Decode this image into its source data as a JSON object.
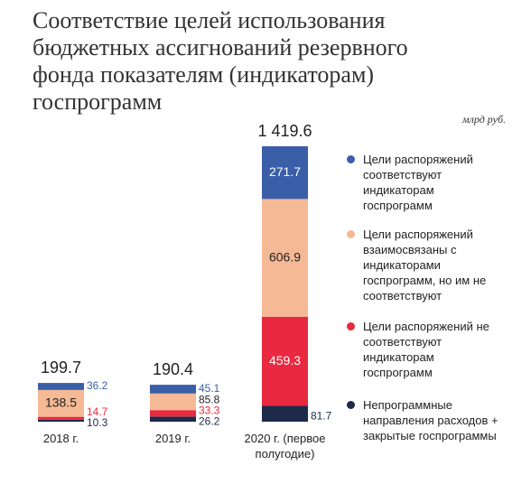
{
  "chart_data": {
    "type": "stacked_bar",
    "title": "Соответствие целей использования бюджетных ассигнований резервного фонда показателям (индикаторам) госпрограмм",
    "unit": "млрд руб.",
    "categories": [
      "2018 г.",
      "2019 г.",
      "2020 г. (первое полугодие)"
    ],
    "series": [
      {
        "name": "Цели распоряжений соответствуют индикаторам госпрограмм",
        "color": "#3a5fa8",
        "values": [
          36.2,
          45.1,
          271.7
        ]
      },
      {
        "name": "Цели распоряжений взаимосвязаны с индикаторами госпрограмм, но им не соответствуют",
        "color": "#f6b995",
        "values": [
          138.5,
          85.8,
          606.9
        ]
      },
      {
        "name": "Цели распоряжений не соответствуют индикаторам госпрограмм",
        "color": "#e8293f",
        "values": [
          14.7,
          33.3,
          459.3
        ]
      },
      {
        "name": "Непрограммные направления расходов + закрытые госпрограммы",
        "color": "#1e2a4a",
        "values": [
          10.3,
          26.2,
          81.7
        ]
      }
    ],
    "totals": [
      199.7,
      190.4,
      1419.6
    ],
    "total_labels": [
      "199.7",
      "190.4",
      "1 419.6"
    ]
  }
}
